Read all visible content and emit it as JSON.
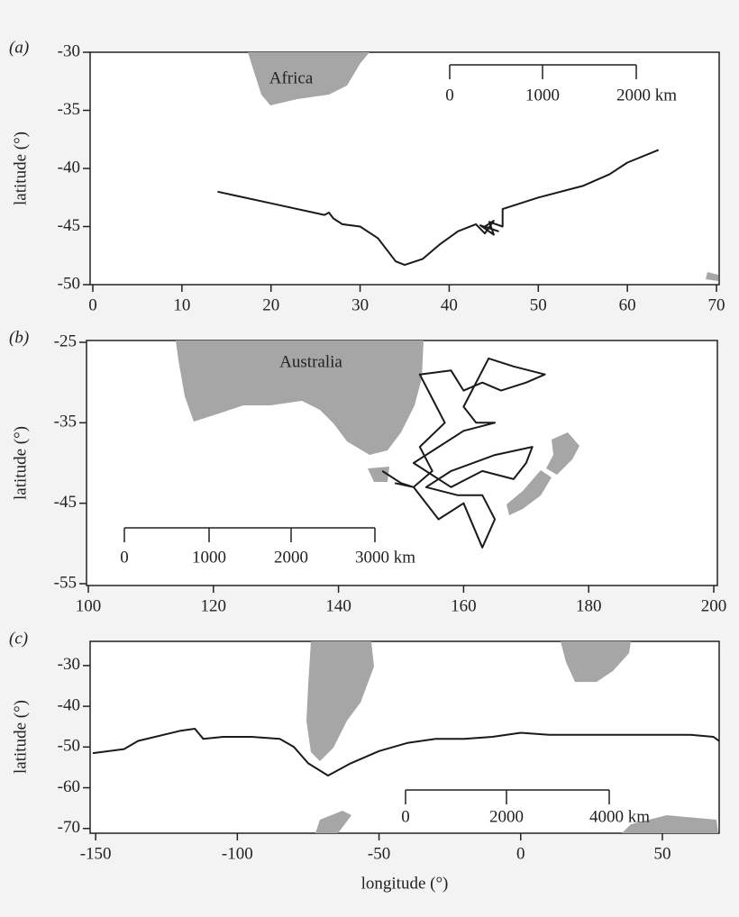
{
  "chart_data": [
    {
      "type": "line",
      "panel_label": "(a)",
      "annotation": "Africa",
      "ylabel": "latitude (°)",
      "color": "#1a1a1a",
      "scale_bar": [
        "0",
        "1000",
        "2000 km"
      ],
      "x": [
        14,
        20,
        26,
        26.5,
        27,
        28,
        30,
        32,
        34,
        35,
        37,
        39,
        41,
        43,
        44,
        45,
        44,
        45.5,
        43.5,
        45,
        44.5,
        46,
        46,
        50,
        55,
        58,
        60,
        63.5
      ],
      "values": [
        -42,
        -43,
        -44,
        -43.8,
        -44.3,
        -44.8,
        -45,
        -46,
        -48,
        -48.3,
        -47.8,
        -46.5,
        -45.4,
        -44.8,
        -45.6,
        -44.5,
        -45,
        -45.4,
        -44.9,
        -45.7,
        -44.6,
        -45,
        -43.5,
        -42.5,
        -41.5,
        -40.5,
        -39.5,
        -38.4
      ],
      "xlim": [
        0,
        70
      ],
      "ylim": [
        -50,
        -30
      ],
      "xticks": [
        0,
        10,
        20,
        30,
        40,
        50,
        60,
        70
      ],
      "yticks": [
        -30,
        -35,
        -40,
        -45,
        -50
      ]
    },
    {
      "type": "line",
      "panel_label": "(b)",
      "annotation": "Australia",
      "ylabel": "latitude (°)",
      "color": "#1a1a1a",
      "scale_bar": [
        "0",
        "1000",
        "2000",
        "3000 km"
      ],
      "x": [
        147,
        150,
        152,
        155,
        153,
        157,
        155,
        153,
        158,
        160,
        163,
        166,
        170,
        173,
        168,
        164,
        160,
        162,
        165,
        160,
        155,
        152,
        158,
        163,
        168,
        170,
        171,
        165,
        158,
        154,
        159,
        163,
        165,
        163,
        160,
        156,
        152,
        149
      ],
      "values": [
        -41,
        -42.5,
        -43,
        -41,
        -38,
        -35,
        -32,
        -29,
        -28.5,
        -31,
        -30,
        -31,
        -30,
        -29,
        -28,
        -27,
        -33,
        -35,
        -35,
        -36,
        -38.5,
        -40,
        -43,
        -41,
        -42,
        -40,
        -38,
        -39,
        -41,
        -43,
        -44,
        -44,
        -47,
        -50.5,
        -45,
        -47,
        -43,
        -42.5
      ],
      "xlim": [
        100,
        200
      ],
      "ylim": [
        -55,
        -25
      ],
      "xticks": [
        100,
        120,
        140,
        160,
        180,
        200
      ],
      "yticks": [
        -25,
        -35,
        -45,
        -55
      ]
    },
    {
      "type": "line",
      "panel_label": "(c)",
      "ylabel": "latitude (°)",
      "xlabel": "longitude (°)",
      "color": "#1a1a1a",
      "scale_bar": [
        "0",
        "2000",
        "4000 km"
      ],
      "x": [
        -151,
        -140,
        -135,
        -120,
        -115,
        -112,
        -105,
        -95,
        -85,
        -80,
        -75,
        -68,
        -60,
        -50,
        -40,
        -30,
        -20,
        -10,
        0,
        10,
        20,
        30,
        40,
        50,
        60,
        68,
        71
      ],
      "values": [
        -51.5,
        -50.5,
        -48.5,
        -46,
        -45.5,
        -48,
        -47.5,
        -47.5,
        -48,
        -50,
        -54,
        -57,
        -54,
        -51,
        -49,
        -48,
        -48,
        -47.5,
        -46.5,
        -47,
        -47,
        -47,
        -47,
        -47,
        -47,
        -47.5,
        -49
      ],
      "xlim": [
        -151,
        71
      ],
      "ylim": [
        -70.5,
        -24.5
      ],
      "xticks": [
        -150,
        -100,
        -50,
        0,
        50
      ],
      "yticks": [
        -30,
        -40,
        -50,
        -60,
        -70
      ]
    }
  ]
}
